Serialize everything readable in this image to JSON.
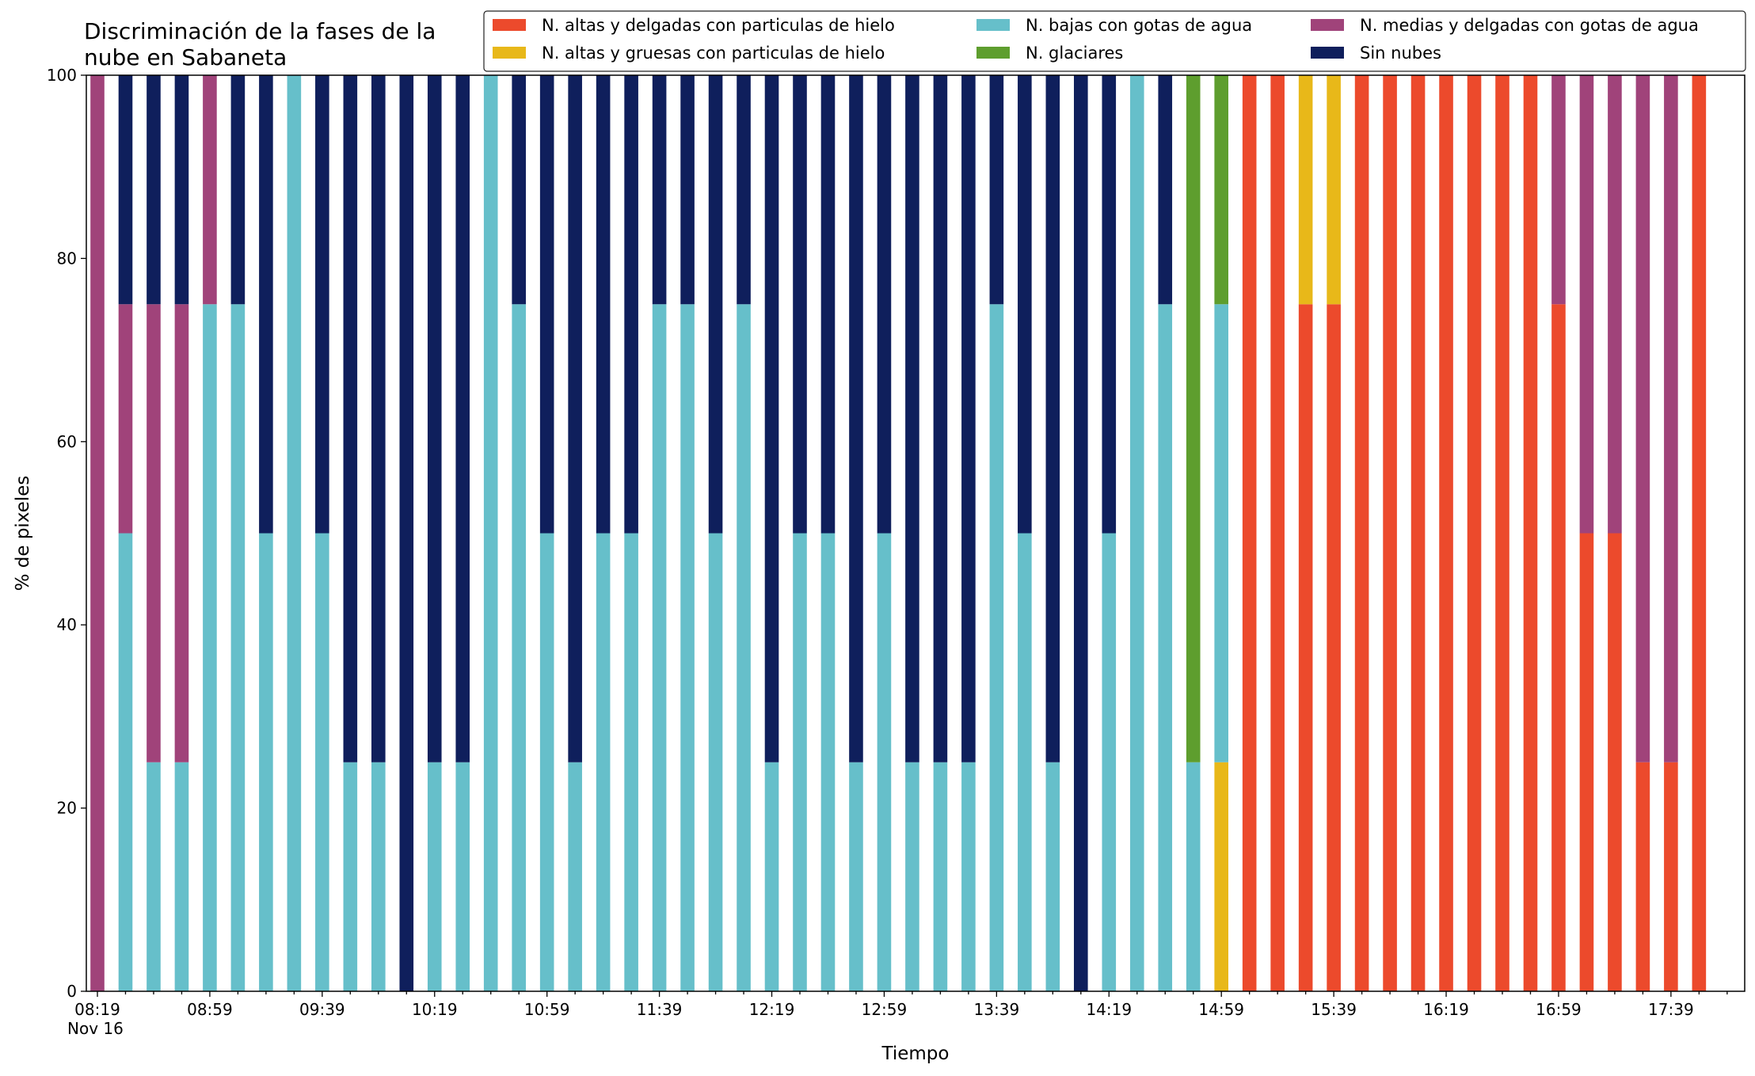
{
  "chart_data": {
    "type": "bar",
    "stacked": true,
    "title": "Discriminación de la fases de la\nnube en Sabaneta",
    "xlabel": "Tiempo",
    "ylabel": "% de pixeles",
    "ylim": [
      0,
      100
    ],
    "y_ticks": [
      0,
      20,
      40,
      60,
      80,
      100
    ],
    "grid": false,
    "legend_position": "top-right",
    "x_tick_labels": [
      "08:19\nNov 16",
      "08:59",
      "09:39",
      "10:19",
      "10:59",
      "11:39",
      "12:19",
      "12:59",
      "13:39",
      "14:19",
      "14:59",
      "15:39",
      "16:19",
      "16:59",
      "17:39"
    ],
    "categories": [
      "08:19",
      "08:29",
      "08:39",
      "08:49",
      "08:59",
      "09:09",
      "09:19",
      "09:29",
      "09:39",
      "09:49",
      "09:59",
      "10:09",
      "10:19",
      "10:29",
      "10:39",
      "10:49",
      "10:59",
      "11:09",
      "11:19",
      "11:29",
      "11:39",
      "11:49",
      "11:59",
      "12:09",
      "12:19",
      "12:29",
      "12:39",
      "12:49",
      "12:59",
      "13:09",
      "13:19",
      "13:29",
      "13:39",
      "13:49",
      "13:59",
      "14:09",
      "14:19",
      "14:29",
      "14:39",
      "14:49",
      "14:59",
      "15:09",
      "15:19",
      "15:29",
      "15:39",
      "15:49",
      "15:59",
      "16:09",
      "16:19",
      "16:29",
      "16:39",
      "16:49",
      "16:59",
      "17:09",
      "17:19",
      "17:29",
      "17:39",
      "17:49"
    ],
    "series": [
      {
        "name": "N. altas y delgadas con particulas de hielo",
        "color": "#ec4a2c",
        "values": [
          0,
          0,
          0,
          0,
          0,
          0,
          0,
          0,
          0,
          0,
          0,
          0,
          0,
          0,
          0,
          0,
          0,
          0,
          0,
          0,
          0,
          0,
          0,
          0,
          0,
          0,
          0,
          0,
          0,
          0,
          0,
          0,
          0,
          0,
          0,
          0,
          0,
          0,
          0,
          0,
          0,
          100,
          100,
          75,
          75,
          100,
          100,
          100,
          100,
          100,
          100,
          100,
          75,
          50,
          50,
          25,
          25,
          100
        ]
      },
      {
        "name": "N. altas y gruesas con particulas de hielo",
        "color": "#e8b819",
        "values": [
          0,
          0,
          0,
          0,
          0,
          0,
          0,
          0,
          0,
          0,
          0,
          0,
          0,
          0,
          0,
          0,
          0,
          0,
          0,
          0,
          0,
          0,
          0,
          0,
          0,
          0,
          0,
          0,
          0,
          0,
          0,
          0,
          0,
          0,
          0,
          0,
          0,
          0,
          0,
          0,
          25,
          0,
          0,
          25,
          25,
          0,
          0,
          0,
          0,
          0,
          0,
          0,
          0,
          0,
          0,
          0,
          0,
          0
        ]
      },
      {
        "name": "N. bajas con gotas de agua",
        "color": "#66bfca",
        "values": [
          0,
          50,
          25,
          25,
          75,
          75,
          50,
          100,
          50,
          25,
          25,
          0,
          25,
          25,
          100,
          75,
          50,
          25,
          50,
          50,
          75,
          75,
          50,
          75,
          25,
          50,
          50,
          25,
          50,
          25,
          25,
          25,
          75,
          50,
          25,
          0,
          50,
          100,
          75,
          25,
          50,
          0,
          0,
          0,
          0,
          0,
          0,
          0,
          0,
          0,
          0,
          0,
          0,
          0,
          0,
          0,
          0,
          0
        ]
      },
      {
        "name": "N. glaciares",
        "color": "#5e9e2e",
        "values": [
          0,
          0,
          0,
          0,
          0,
          0,
          0,
          0,
          0,
          0,
          0,
          0,
          0,
          0,
          0,
          0,
          0,
          0,
          0,
          0,
          0,
          0,
          0,
          0,
          0,
          0,
          0,
          0,
          0,
          0,
          0,
          0,
          0,
          0,
          0,
          0,
          0,
          0,
          0,
          75,
          25,
          0,
          0,
          0,
          0,
          0,
          0,
          0,
          0,
          0,
          0,
          0,
          0,
          0,
          0,
          0,
          0,
          0
        ]
      },
      {
        "name": "N. medias y delgadas con gotas de agua",
        "color": "#a0437a",
        "values": [
          100,
          25,
          50,
          50,
          25,
          0,
          0,
          0,
          0,
          0,
          0,
          0,
          0,
          0,
          0,
          0,
          0,
          0,
          0,
          0,
          0,
          0,
          0,
          0,
          0,
          0,
          0,
          0,
          0,
          0,
          0,
          0,
          0,
          0,
          0,
          0,
          0,
          0,
          0,
          0,
          0,
          0,
          0,
          0,
          0,
          0,
          0,
          0,
          0,
          0,
          0,
          0,
          25,
          50,
          50,
          75,
          75,
          0
        ]
      },
      {
        "name": "Sin nubes",
        "color": "#0f1f5c",
        "values": [
          0,
          25,
          25,
          25,
          0,
          25,
          50,
          0,
          50,
          75,
          75,
          100,
          75,
          75,
          0,
          25,
          50,
          75,
          50,
          50,
          25,
          25,
          50,
          25,
          75,
          50,
          50,
          75,
          50,
          75,
          75,
          75,
          25,
          50,
          75,
          100,
          50,
          0,
          25,
          0,
          0,
          0,
          0,
          0,
          0,
          0,
          0,
          0,
          0,
          0,
          0,
          0,
          0,
          0,
          0,
          0,
          0,
          0
        ]
      }
    ]
  }
}
